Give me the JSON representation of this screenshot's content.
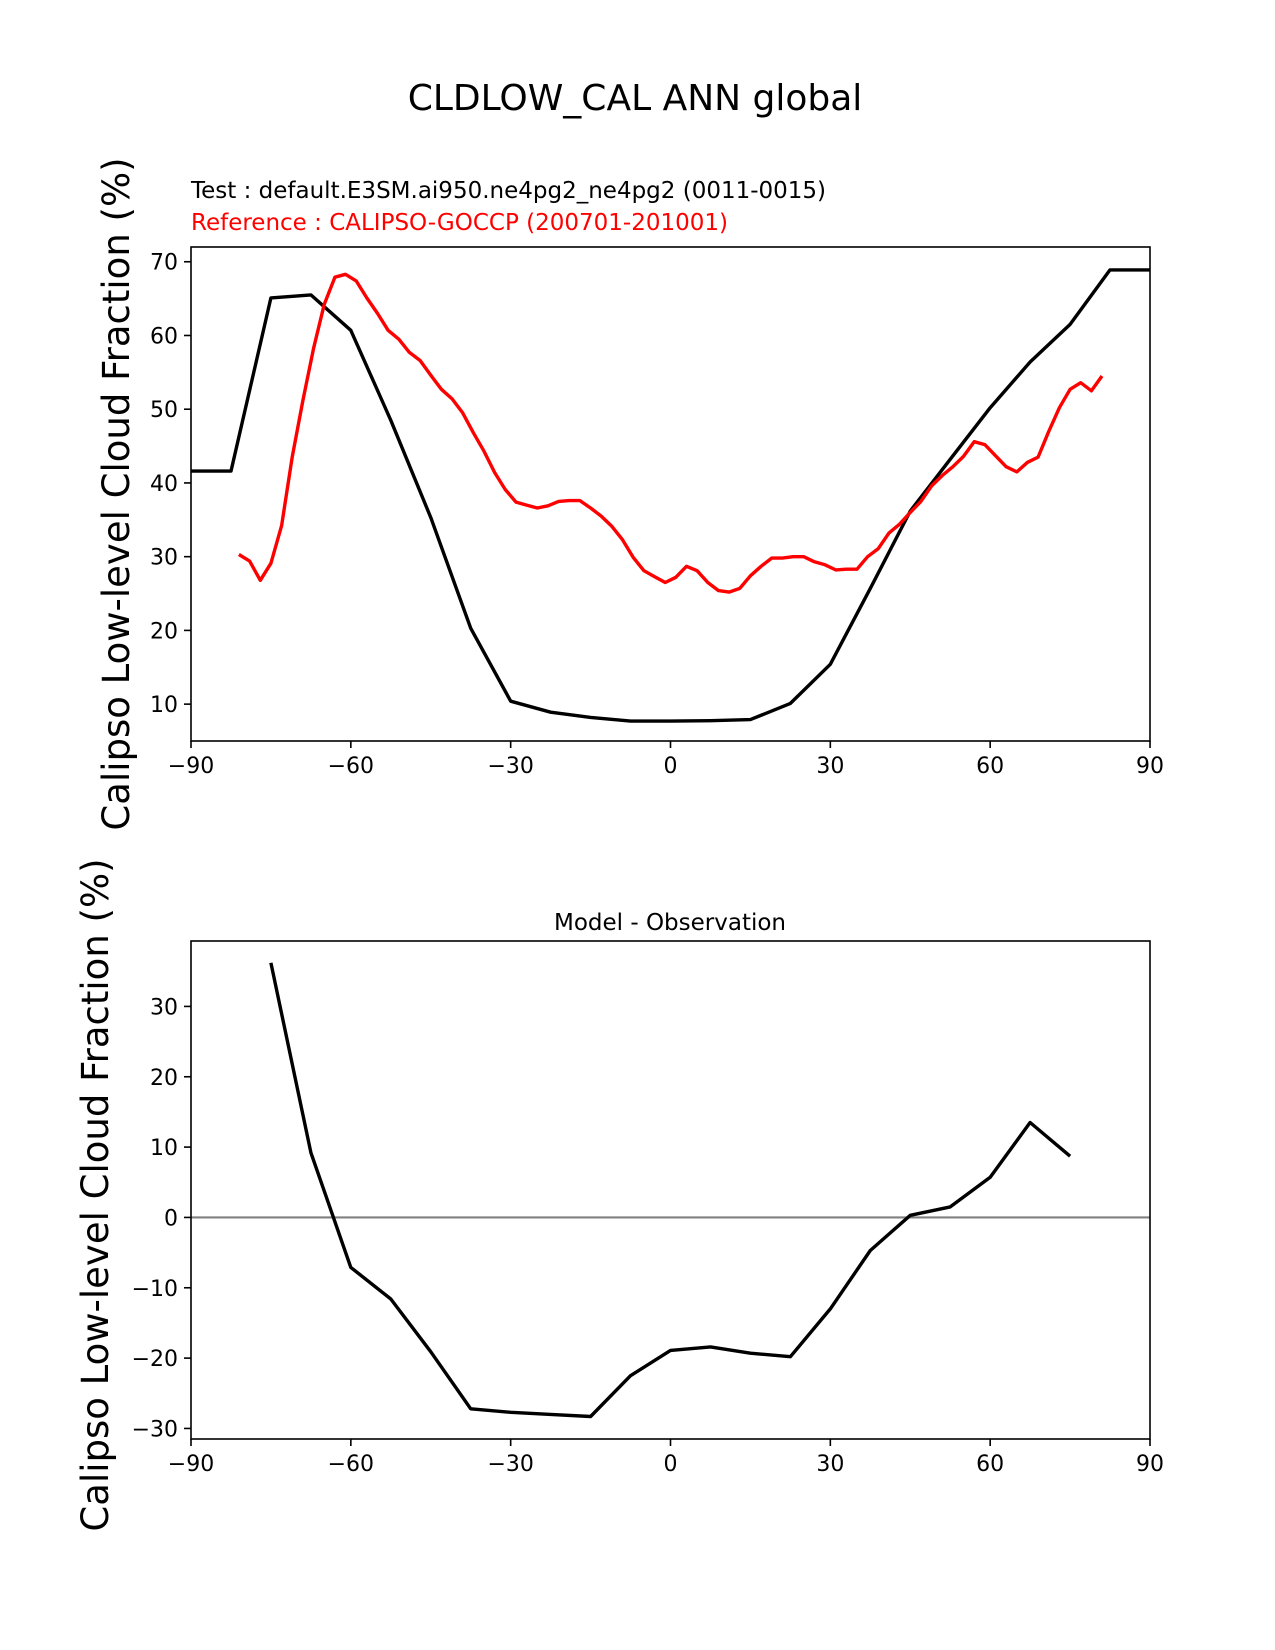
{
  "figure": {
    "title": "CLDLOW_CAL ANN global",
    "test_label": "Test : default.E3SM.ai950.ne4pg2_ne4pg2 (0011-0015)",
    "reference_label": "Reference : CALIPSO-GOCCP (200701-201001)",
    "ylabel_top": "Calipso Low-level Cloud Fraction (%)",
    "ylabel_bottom": "Calipso Low-level Cloud Fraction (%)"
  },
  "colors": {
    "test": "#000000",
    "reference": "#ff0000",
    "zero_line": "#808080",
    "axis": "#000000"
  },
  "chart_data": [
    {
      "type": "line",
      "title": "",
      "xlabel": "",
      "ylabel": "Calipso Low-level Cloud Fraction (%)",
      "xlim": [
        -90,
        90
      ],
      "ylim": [
        5,
        72
      ],
      "xticks": [
        -90,
        -60,
        -30,
        0,
        30,
        60,
        90
      ],
      "yticks": [
        10,
        20,
        30,
        40,
        50,
        60,
        70
      ],
      "series": [
        {
          "name": "Test",
          "color": "#000000",
          "x": [
            -90,
            -82.5,
            -75,
            -67.5,
            -60,
            -52.5,
            -45,
            -37.5,
            -30,
            -22.5,
            -15,
            -7.5,
            0,
            7.5,
            15,
            22.5,
            30,
            37.5,
            45,
            52.5,
            60,
            67.5,
            75,
            82.5,
            90
          ],
          "y": [
            41.6,
            41.6,
            65.1,
            65.5,
            60.7,
            48.5,
            35.3,
            20.3,
            10.4,
            8.9,
            8.2,
            7.7,
            7.7,
            7.75,
            7.9,
            10.1,
            15.4,
            25.7,
            36.2,
            43.2,
            50.2,
            56.4,
            61.5,
            68.9,
            68.9
          ]
        },
        {
          "name": "Reference",
          "color": "#ff0000",
          "x": [
            -81,
            -79,
            -77,
            -75,
            -73,
            -71,
            -69,
            -67,
            -65,
            -63,
            -61,
            -59,
            -57,
            -55,
            -53,
            -51,
            -49,
            -47,
            -45,
            -43,
            -41,
            -39,
            -37,
            -35,
            -33,
            -31,
            -29,
            -27,
            -25,
            -23,
            -21,
            -19,
            -17,
            -15,
            -13,
            -11,
            -9,
            -7,
            -5,
            -3,
            -1,
            1,
            3,
            5,
            7,
            9,
            11,
            13,
            15,
            17,
            19,
            21,
            23,
            25,
            27,
            29,
            31,
            33,
            35,
            37,
            39,
            41,
            43,
            45,
            47,
            49,
            51,
            53,
            55,
            57,
            59,
            61,
            63,
            65,
            67,
            69,
            71,
            73,
            75,
            77,
            79,
            81
          ],
          "y": [
            30.3,
            29.4,
            26.8,
            29.1,
            34.2,
            43.5,
            51.2,
            58.2,
            64.2,
            67.9,
            68.3,
            67.4,
            65.1,
            63.0,
            60.7,
            59.5,
            57.7,
            56.6,
            54.6,
            52.7,
            51.4,
            49.5,
            46.8,
            44.3,
            41.4,
            39.1,
            37.4,
            37.0,
            36.6,
            36.9,
            37.5,
            37.6,
            37.6,
            36.6,
            35.5,
            34.1,
            32.3,
            29.9,
            28.1,
            27.3,
            26.5,
            27.2,
            28.7,
            28.1,
            26.5,
            25.4,
            25.2,
            25.7,
            27.4,
            28.7,
            29.8,
            29.8,
            30.0,
            30.0,
            29.3,
            28.9,
            28.2,
            28.3,
            28.3,
            30.0,
            31.1,
            33.2,
            34.4,
            36.0,
            37.5,
            39.6,
            41.0,
            42.2,
            43.6,
            45.6,
            45.2,
            43.7,
            42.2,
            41.5,
            42.8,
            43.5,
            47.0,
            50.2,
            52.7,
            53.6,
            52.5,
            54.5
          ]
        }
      ]
    },
    {
      "type": "line",
      "title": "Model - Observation",
      "xlabel": "",
      "ylabel": "Calipso Low-level Cloud Fraction (%)",
      "xlim": [
        -90,
        90
      ],
      "ylim": [
        -31.5,
        39.3
      ],
      "xticks": [
        -90,
        -60,
        -30,
        0,
        30,
        60,
        90
      ],
      "yticks": [
        -30,
        -20,
        -10,
        0,
        10,
        20,
        30
      ],
      "zero_line": 0,
      "series": [
        {
          "name": "Model - Observation",
          "color": "#000000",
          "x": [
            -75,
            -67.5,
            -60,
            -52.5,
            -45,
            -37.5,
            -30,
            -22.5,
            -15,
            -7.5,
            0,
            7.5,
            15,
            22.5,
            30,
            37.5,
            45,
            52.5,
            60,
            67.5,
            75
          ],
          "y": [
            36.2,
            9.2,
            -7.1,
            -11.6,
            -19.1,
            -27.2,
            -27.7,
            -28.0,
            -28.3,
            -22.5,
            -18.9,
            -18.4,
            -19.3,
            -19.8,
            -13.0,
            -4.7,
            0.3,
            1.5,
            5.7,
            13.5,
            8.7
          ]
        }
      ]
    }
  ]
}
